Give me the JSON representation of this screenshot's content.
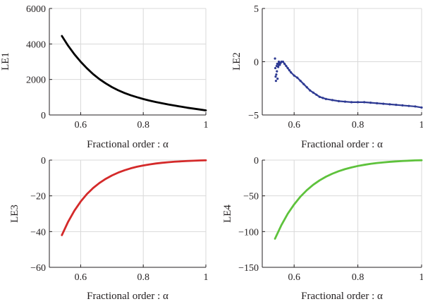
{
  "chart_data": [
    {
      "type": "line",
      "xlabel": "Fractional order : α",
      "ylabel": "LE1",
      "xlim": [
        0.5,
        1.0
      ],
      "ylim": [
        0,
        6000
      ],
      "xticks": [
        0.6,
        0.8,
        1
      ],
      "xtick_labels": [
        "0.6",
        "0.8",
        "1"
      ],
      "yticks": [
        0,
        2000,
        4000,
        6000
      ],
      "ytick_labels": [
        "0",
        "2000",
        "4000",
        "6000"
      ],
      "grid": true,
      "color": "#000000",
      "series": [
        {
          "x": [
            0.54,
            0.56,
            0.58,
            0.6,
            0.62,
            0.64,
            0.66,
            0.68,
            0.7,
            0.72,
            0.74,
            0.76,
            0.78,
            0.8,
            0.82,
            0.84,
            0.86,
            0.88,
            0.9,
            0.92,
            0.94,
            0.96,
            0.98,
            1.0
          ],
          "y": [
            4450,
            3900,
            3420,
            3000,
            2630,
            2300,
            2020,
            1780,
            1570,
            1390,
            1240,
            1110,
            1000,
            900,
            810,
            730,
            660,
            590,
            530,
            470,
            410,
            360,
            310,
            260
          ]
        }
      ]
    },
    {
      "type": "scatter",
      "xlabel": "Fractional order : α",
      "ylabel": "LE2",
      "xlim": [
        0.5,
        1.0
      ],
      "ylim": [
        -5,
        5
      ],
      "xticks": [
        0.6,
        0.8,
        1
      ],
      "xtick_labels": [
        "0.6",
        "0.8",
        "1"
      ],
      "yticks": [
        -5,
        0,
        5
      ],
      "ytick_labels": [
        "−5",
        "0",
        "5"
      ],
      "grid": true,
      "color": "#2e3a93",
      "series": [
        {
          "x": [
            0.54,
            0.541,
            0.542,
            0.543,
            0.544,
            0.545,
            0.546,
            0.547,
            0.548,
            0.55,
            0.552,
            0.555,
            0.558,
            0.56,
            0.565,
            0.57,
            0.575,
            0.58,
            0.585,
            0.59,
            0.6,
            0.61,
            0.62,
            0.63,
            0.64,
            0.65,
            0.66,
            0.67,
            0.68,
            0.69,
            0.7,
            0.72,
            0.74,
            0.76,
            0.78,
            0.8,
            0.82,
            0.84,
            0.86,
            0.88,
            0.9,
            0.92,
            0.94,
            0.96,
            0.98,
            1.0
          ],
          "y": [
            0.3,
            -0.6,
            -1.4,
            -1.8,
            -1.2,
            -0.4,
            -0.9,
            -0.2,
            -1.6,
            -0.5,
            0.0,
            -0.3,
            -0.1,
            0.0,
            0.0,
            -0.2,
            -0.4,
            -0.6,
            -0.8,
            -1.0,
            -1.3,
            -1.5,
            -1.8,
            -2.1,
            -2.4,
            -2.7,
            -2.9,
            -3.1,
            -3.3,
            -3.4,
            -3.5,
            -3.6,
            -3.7,
            -3.75,
            -3.8,
            -3.8,
            -3.8,
            -3.85,
            -3.9,
            -3.95,
            -4.0,
            -4.05,
            -4.1,
            -4.15,
            -4.2,
            -4.3
          ]
        }
      ]
    },
    {
      "type": "line",
      "xlabel": "Fractional order : α",
      "ylabel": "LE3",
      "xlim": [
        0.5,
        1.0
      ],
      "ylim": [
        -60,
        0
      ],
      "xticks": [
        0.6,
        0.8,
        1
      ],
      "xtick_labels": [
        "0.6",
        "0.8",
        "1"
      ],
      "yticks": [
        -60,
        -40,
        -20,
        0
      ],
      "ytick_labels": [
        "−60",
        "−40",
        "−20",
        "0"
      ],
      "grid": true,
      "color": "#d42a2a",
      "series": [
        {
          "x": [
            0.54,
            0.56,
            0.58,
            0.6,
            0.62,
            0.64,
            0.66,
            0.68,
            0.7,
            0.72,
            0.74,
            0.76,
            0.78,
            0.8,
            0.82,
            0.84,
            0.86,
            0.88,
            0.9,
            0.92,
            0.94,
            0.96,
            0.98,
            1.0
          ],
          "y": [
            -42,
            -34.5,
            -28.3,
            -23.2,
            -19,
            -15.6,
            -12.8,
            -10.5,
            -8.6,
            -7.0,
            -5.7,
            -4.6,
            -3.7,
            -3.0,
            -2.4,
            -1.9,
            -1.5,
            -1.2,
            -0.9,
            -0.7,
            -0.5,
            -0.35,
            -0.2,
            -0.1
          ]
        }
      ]
    },
    {
      "type": "line",
      "xlabel": "Fractional order : α",
      "ylabel": "LE4",
      "xlim": [
        0.5,
        1.0
      ],
      "ylim": [
        -150,
        0
      ],
      "xticks": [
        0.6,
        0.8,
        1
      ],
      "xtick_labels": [
        "0.6",
        "0.8",
        "1"
      ],
      "yticks": [
        -150,
        -100,
        -50,
        0
      ],
      "ytick_labels": [
        "−150",
        "−100",
        "−50",
        "0"
      ],
      "grid": true,
      "color": "#5ec23c",
      "series": [
        {
          "x": [
            0.54,
            0.56,
            0.58,
            0.6,
            0.62,
            0.64,
            0.66,
            0.68,
            0.7,
            0.72,
            0.74,
            0.76,
            0.78,
            0.8,
            0.82,
            0.84,
            0.86,
            0.88,
            0.9,
            0.92,
            0.94,
            0.96,
            0.98,
            1.0
          ],
          "y": [
            -110,
            -91,
            -75,
            -62,
            -51,
            -42,
            -34.5,
            -28.3,
            -23.2,
            -19,
            -15.5,
            -12.6,
            -10.2,
            -8.2,
            -6.6,
            -5.2,
            -4.1,
            -3.2,
            -2.4,
            -1.8,
            -1.2,
            -0.8,
            -0.4,
            -0.2
          ]
        }
      ]
    }
  ]
}
